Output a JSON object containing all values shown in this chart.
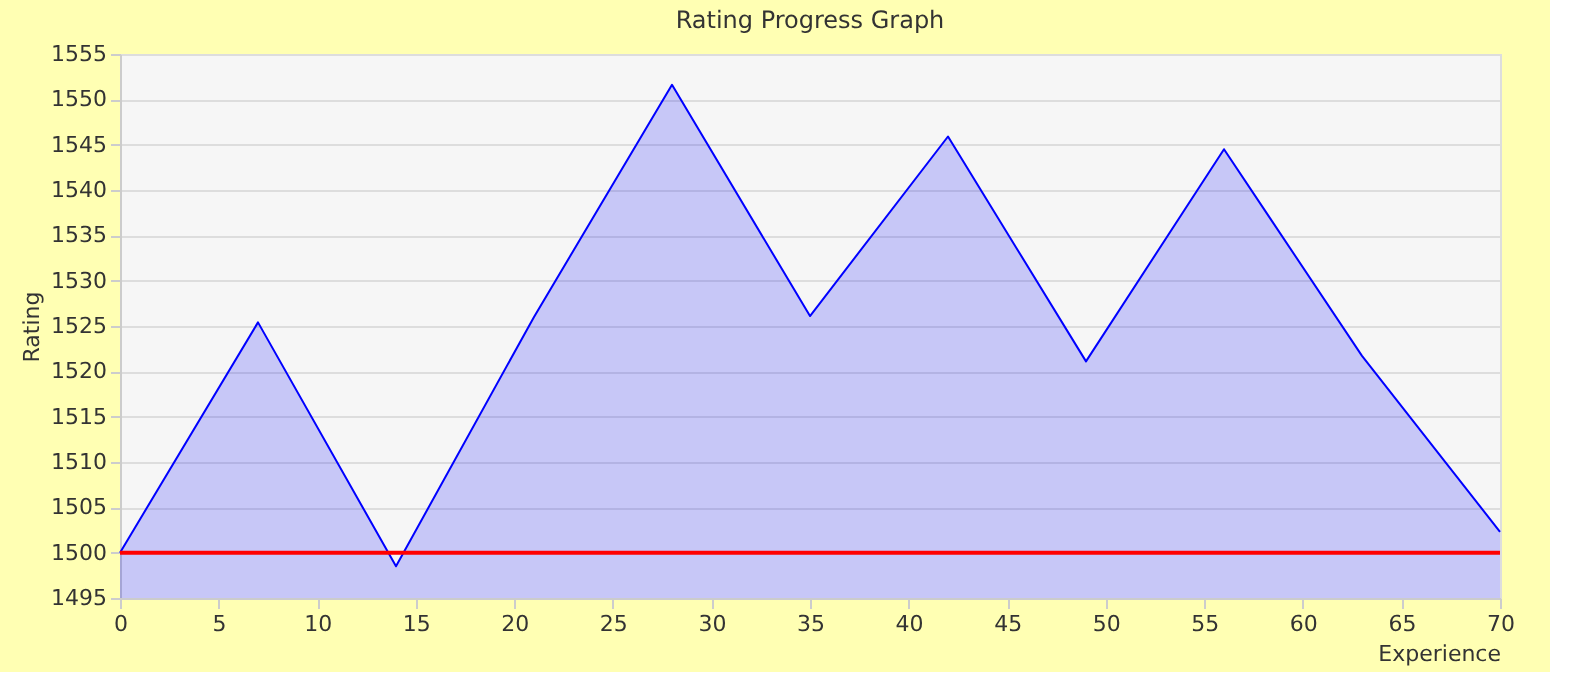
{
  "chart_data": {
    "type": "area",
    "title": "Rating Progress Graph",
    "xlabel": "Experience",
    "ylabel": "Rating",
    "x": [
      0,
      7,
      14,
      21,
      28,
      35,
      42,
      49,
      56,
      63,
      70
    ],
    "series": [
      {
        "color": "#0000ff",
        "values": [
          1500,
          1525.4,
          1498.5,
          1526,
          1551.6,
          1526.1,
          1545.9,
          1521.1,
          1544.5,
          1521.7,
          1502.3
        ]
      }
    ],
    "xlim": [
      0,
      70
    ],
    "xticks": [
      0,
      5,
      10,
      15,
      20,
      25,
      30,
      35,
      40,
      45,
      50,
      55,
      60,
      65,
      70
    ],
    "ylim": [
      1495,
      1555
    ],
    "yticks": [
      1495,
      1500,
      1505,
      1510,
      1515,
      1520,
      1525,
      1530,
      1535,
      1540,
      1545,
      1550,
      1555
    ],
    "ref_lines": [
      {
        "axis": "y",
        "value": 1500,
        "color": "#ff0000"
      }
    ],
    "grid": "y"
  }
}
